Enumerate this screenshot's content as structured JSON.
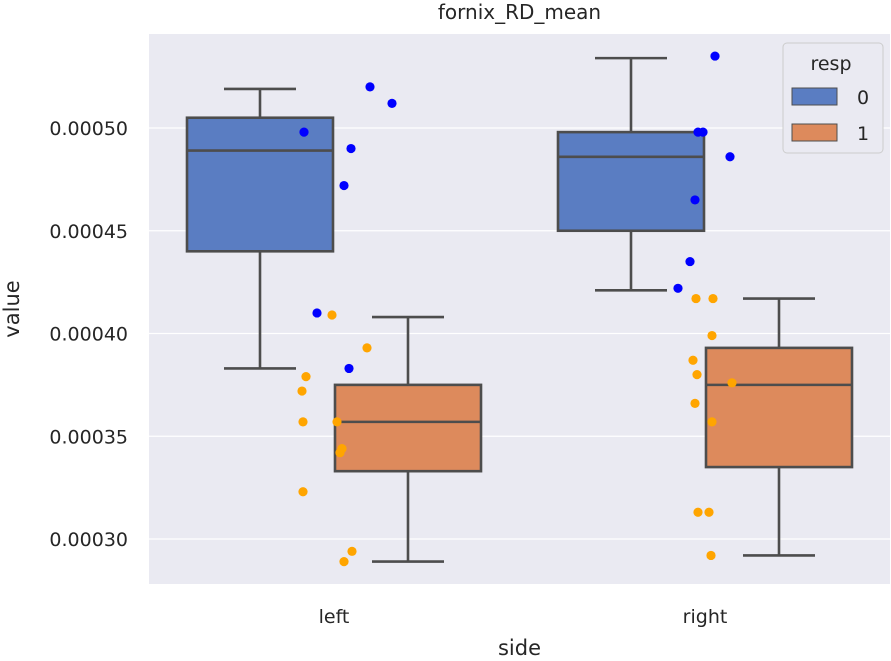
{
  "colors": {
    "plot_bg": "#EAEAF2",
    "grid": "#FFFFFF",
    "box_0": "#5A7DC2",
    "box_1": "#DD8A5C",
    "box_edge": "#4D4D4D",
    "point_0": "#0000FF",
    "point_1": "#FFA500",
    "text": "#262626"
  },
  "chart_data": {
    "type": "box",
    "title": "fornix_RD_mean",
    "xlabel": "side",
    "ylabel": "value",
    "categories": [
      "left",
      "right"
    ],
    "ylim": [
      0.000277,
      0.000545
    ],
    "yticks": [
      0.0003,
      0.00035,
      0.0004,
      0.00045,
      0.0005
    ],
    "ytick_labels": [
      "0.00030",
      "0.00035",
      "0.00040",
      "0.00045",
      "0.00050"
    ],
    "grid": true,
    "legend": {
      "title": "resp",
      "position": "top-right",
      "entries": [
        "0",
        "1"
      ]
    },
    "series": [
      {
        "name": "0",
        "boxes": [
          {
            "category": "left",
            "whisker_low": 0.000383,
            "q1": 0.00044,
            "median": 0.000489,
            "q3": 0.000505,
            "whisker_high": 0.000519
          },
          {
            "category": "right",
            "whisker_low": 0.000421,
            "q1": 0.00045,
            "median": 0.000486,
            "q3": 0.000498,
            "whisker_high": 0.000534
          }
        ],
        "points": [
          {
            "category": "left",
            "values": [
              0.00052,
              0.000512,
              0.000498,
              0.00049,
              0.000472,
              0.00041,
              0.000383
            ]
          },
          {
            "category": "right",
            "values": [
              0.000535,
              0.000498,
              0.000498,
              0.000486,
              0.000465,
              0.000435,
              0.000422
            ]
          }
        ]
      },
      {
        "name": "1",
        "boxes": [
          {
            "category": "left",
            "whisker_low": 0.000289,
            "q1": 0.000333,
            "median": 0.000357,
            "q3": 0.000375,
            "whisker_high": 0.000408
          },
          {
            "category": "right",
            "whisker_low": 0.000292,
            "q1": 0.000335,
            "median": 0.000375,
            "q3": 0.000393,
            "whisker_high": 0.000417
          }
        ],
        "points": [
          {
            "category": "left",
            "values": [
              0.000409,
              0.000393,
              0.000379,
              0.000372,
              0.000357,
              0.000357,
              0.000344,
              0.000342,
              0.000323,
              0.000294,
              0.000289
            ]
          },
          {
            "category": "right",
            "values": [
              0.000417,
              0.000417,
              0.000399,
              0.000387,
              0.00038,
              0.000376,
              0.000366,
              0.000357,
              0.000313,
              0.000313,
              0.000292
            ]
          }
        ]
      }
    ]
  }
}
